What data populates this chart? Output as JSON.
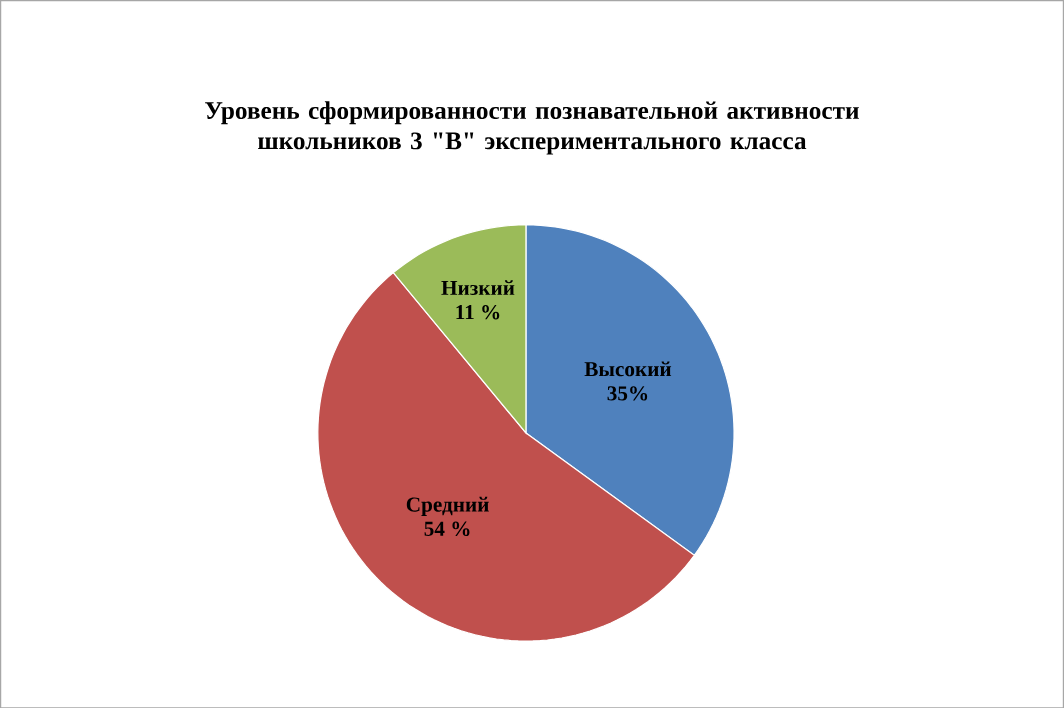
{
  "chart_data": {
    "type": "pie",
    "title": "Уровень сформированности познавательной активности школьников 3 \"В\" экспериментального класса",
    "categories": [
      "Высокий",
      "Средний",
      "Низкий"
    ],
    "values": [
      35,
      54,
      11
    ],
    "value_labels": [
      "35%",
      "54 %",
      "11 %"
    ],
    "colors": [
      "#4f81bd",
      "#c0504d",
      "#9bbb59"
    ]
  }
}
